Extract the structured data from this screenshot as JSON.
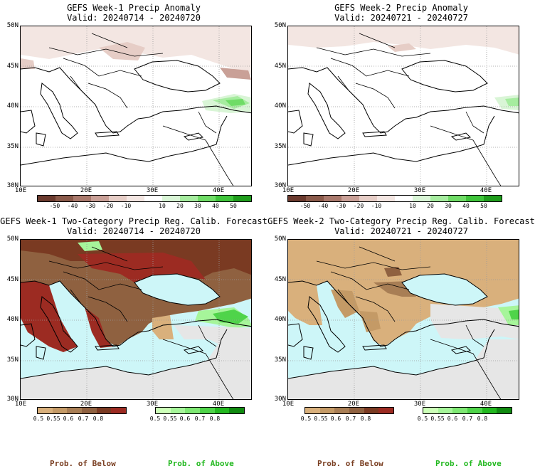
{
  "panels": {
    "p1": {
      "title": "GEFS Week-1 Precip Anomaly",
      "valid": "Valid: 20240714 - 20240720"
    },
    "p2": {
      "title": "GEFS Week-2 Precip Anomaly",
      "valid": "Valid: 20240721 - 20240727"
    },
    "p3": {
      "title": "GEFS Week-1 Two-Category Precip Reg. Calib. Forecast",
      "valid": "Valid: 20240714 - 20240720"
    },
    "p4": {
      "title": "GEFS Week-2 Two-Category Precip Reg. Calib. Forecast",
      "valid": "Valid: 20240721 - 20240727"
    }
  },
  "axes": {
    "lat_labels": [
      "50N",
      "45N",
      "40N",
      "35N",
      "30N"
    ],
    "lon_labels": [
      "10E",
      "20E",
      "30E",
      "40E"
    ]
  },
  "anomaly_colorbar": {
    "labels": [
      "-50",
      "-40",
      "-30",
      "-20",
      "-10",
      "10",
      "20",
      "30",
      "40",
      "50"
    ],
    "colors": [
      "#6b3a2e",
      "#8a5a4a",
      "#a9796c",
      "#c9a097",
      "#e6cdc6",
      "#f3e6e2",
      "#ffffff",
      "#d9f5d6",
      "#a6ec9f",
      "#6fdc66",
      "#3fc43a",
      "#1f9d1c"
    ]
  },
  "below_colorbar": {
    "labels": [
      "0.5",
      "0.55",
      "0.6",
      "0.7",
      "0.8"
    ],
    "colors": [
      "#d9b07c",
      "#c49a66",
      "#a87e55",
      "#8f6140",
      "#7a3a22",
      "#9c2b22"
    ]
  },
  "above_colorbar": {
    "labels": [
      "0.5",
      "0.55",
      "0.6",
      "0.7",
      "0.8"
    ],
    "colors": [
      "#ccffb8",
      "#a6f59a",
      "#7ee873",
      "#4fd44a",
      "#22b81f",
      "#108a10"
    ]
  },
  "legend": {
    "below": "Prob. of Below",
    "above": "Prob. of Above"
  },
  "colors": {
    "land": "#ffffff",
    "sea_prob": "#cdf6f8",
    "nodata": "#e6e6e6",
    "below_text": "#7a3f22",
    "above_text": "#22b81f"
  }
}
